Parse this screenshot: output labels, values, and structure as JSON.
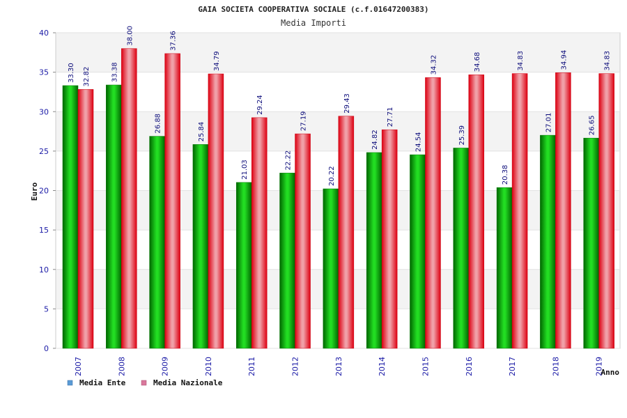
{
  "chart_data": {
    "type": "bar",
    "title": "GAIA SOCIETA COOPERATIVA SOCIALE (c.f.01647200383)",
    "subtitle": "Media Importi",
    "xlabel": "Anno",
    "ylabel": "Euro",
    "ylim": [
      0,
      40
    ],
    "yticks": [
      0,
      5,
      10,
      15,
      20,
      25,
      30,
      35,
      40
    ],
    "grid": true,
    "legend_position": "bottom-left",
    "categories": [
      "2007",
      "2008",
      "2009",
      "2010",
      "2011",
      "2012",
      "2013",
      "2014",
      "2015",
      "2016",
      "2017",
      "2018",
      "2019"
    ],
    "series": [
      {
        "name": "Media Ente",
        "color": "#11aa11",
        "legend_color": "#5b9bd5",
        "values": [
          33.3,
          33.38,
          26.88,
          25.84,
          21.03,
          22.22,
          20.22,
          24.82,
          24.54,
          25.39,
          20.38,
          27.01,
          26.65
        ],
        "labels": [
          "33.30",
          "33.38",
          "26.88",
          "25.84",
          "21.03",
          "22.22",
          "20.22",
          "24.82",
          "24.54",
          "25.39",
          "20.38",
          "27.01",
          "26.65"
        ]
      },
      {
        "name": "Media Nazionale",
        "color": "#ee1122",
        "legend_color": "#d9789c",
        "values": [
          32.82,
          38.0,
          37.36,
          34.79,
          29.24,
          27.19,
          29.43,
          27.71,
          34.32,
          34.68,
          34.83,
          34.94,
          34.83
        ],
        "labels": [
          "32.82",
          "38.00",
          "37.36",
          "34.79",
          "29.24",
          "27.19",
          "29.43",
          "27.71",
          "34.32",
          "34.68",
          "34.83",
          "34.94",
          "34.83"
        ]
      }
    ]
  }
}
